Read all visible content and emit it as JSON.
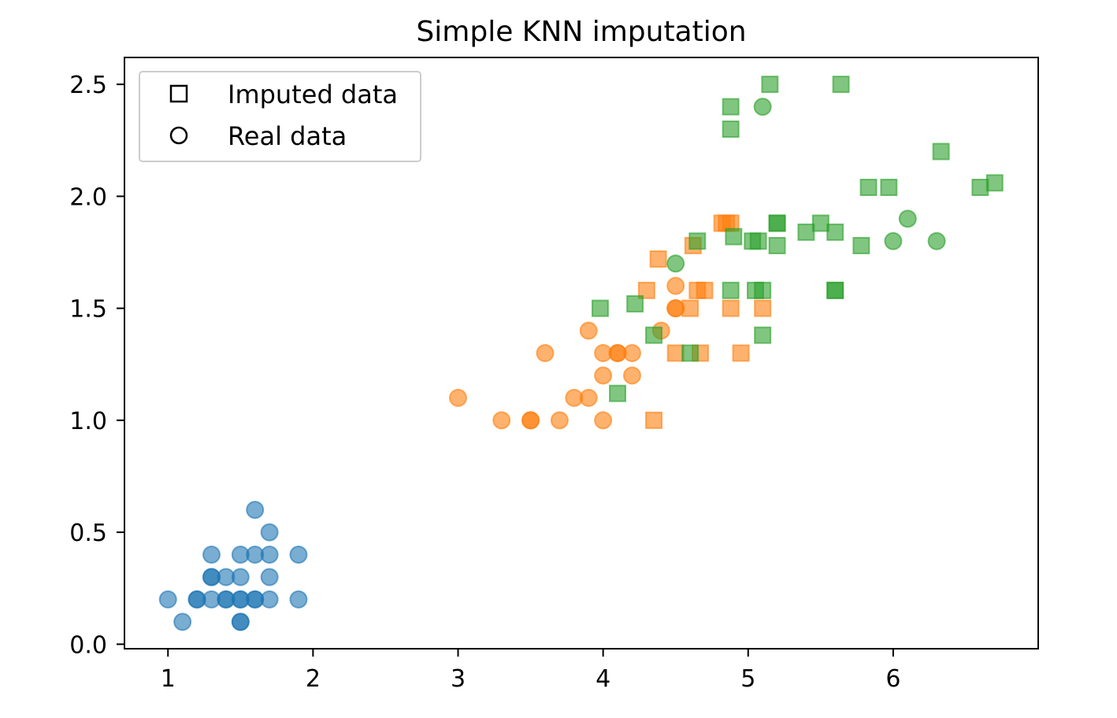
{
  "chart_data": {
    "type": "scatter",
    "title": "Simple KNN imputation",
    "xlabel": "",
    "ylabel": "",
    "xlim": [
      0.7,
      7.0
    ],
    "ylim": [
      -0.02,
      2.62
    ],
    "x_ticks": [
      "1",
      "2",
      "3",
      "4",
      "5",
      "6"
    ],
    "y_ticks": [
      "0.0",
      "0.5",
      "1.0",
      "1.5",
      "2.0",
      "2.5"
    ],
    "grid": false,
    "legend": {
      "placement": "top-left",
      "entries": [
        {
          "label": "Imputed data",
          "marker": "square"
        },
        {
          "label": "Real data",
          "marker": "circle"
        }
      ]
    },
    "series": [
      {
        "color": "#1f77b4",
        "marker": "circle",
        "points": [
          [
            1.0,
            0.2
          ],
          [
            1.1,
            0.1
          ],
          [
            1.2,
            0.2
          ],
          [
            1.2,
            0.2
          ],
          [
            1.3,
            0.2
          ],
          [
            1.3,
            0.3
          ],
          [
            1.3,
            0.3
          ],
          [
            1.3,
            0.4
          ],
          [
            1.4,
            0.2
          ],
          [
            1.4,
            0.2
          ],
          [
            1.4,
            0.3
          ],
          [
            1.5,
            0.1
          ],
          [
            1.5,
            0.1
          ],
          [
            1.5,
            0.2
          ],
          [
            1.5,
            0.2
          ],
          [
            1.5,
            0.3
          ],
          [
            1.5,
            0.4
          ],
          [
            1.6,
            0.2
          ],
          [
            1.6,
            0.2
          ],
          [
            1.6,
            0.4
          ],
          [
            1.6,
            0.6
          ],
          [
            1.7,
            0.2
          ],
          [
            1.7,
            0.3
          ],
          [
            1.7,
            0.4
          ],
          [
            1.7,
            0.5
          ],
          [
            1.9,
            0.2
          ],
          [
            1.9,
            0.4
          ]
        ]
      },
      {
        "color": "#ff7f0e",
        "marker": "circle",
        "points": [
          [
            3.0,
            1.1
          ],
          [
            3.3,
            1.0
          ],
          [
            3.5,
            1.0
          ],
          [
            3.5,
            1.0
          ],
          [
            3.6,
            1.3
          ],
          [
            3.7,
            1.0
          ],
          [
            3.8,
            1.1
          ],
          [
            3.9,
            1.1
          ],
          [
            3.9,
            1.4
          ],
          [
            4.0,
            1.0
          ],
          [
            4.0,
            1.2
          ],
          [
            4.0,
            1.3
          ],
          [
            4.1,
            1.3
          ],
          [
            4.1,
            1.3
          ],
          [
            4.2,
            1.2
          ],
          [
            4.2,
            1.3
          ],
          [
            4.4,
            1.4
          ],
          [
            4.5,
            1.5
          ],
          [
            4.5,
            1.5
          ],
          [
            4.5,
            1.6
          ]
        ]
      },
      {
        "color": "#ff7f0e",
        "marker": "square",
        "points": [
          [
            4.35,
            1.0
          ],
          [
            4.3,
            1.58
          ],
          [
            4.38,
            1.72
          ],
          [
            4.5,
            1.3
          ],
          [
            4.6,
            1.5
          ],
          [
            4.62,
            1.78
          ],
          [
            4.65,
            1.58
          ],
          [
            4.67,
            1.3
          ],
          [
            4.7,
            1.58
          ],
          [
            4.82,
            1.88
          ],
          [
            4.85,
            1.88
          ],
          [
            4.88,
            1.5
          ],
          [
            4.88,
            1.88
          ],
          [
            4.95,
            1.3
          ],
          [
            5.1,
            1.5
          ]
        ]
      },
      {
        "color": "#2ca02c",
        "marker": "circle",
        "points": [
          [
            4.5,
            1.7
          ],
          [
            5.1,
            2.4
          ],
          [
            6.0,
            1.8
          ],
          [
            6.1,
            1.9
          ],
          [
            6.3,
            1.8
          ]
        ]
      },
      {
        "color": "#2ca02c",
        "marker": "square",
        "points": [
          [
            3.98,
            1.5
          ],
          [
            4.1,
            1.12
          ],
          [
            4.22,
            1.52
          ],
          [
            4.35,
            1.38
          ],
          [
            4.6,
            1.3
          ],
          [
            4.65,
            1.8
          ],
          [
            4.88,
            1.58
          ],
          [
            4.9,
            1.82
          ],
          [
            4.88,
            2.3
          ],
          [
            4.88,
            2.4
          ],
          [
            5.03,
            1.8
          ],
          [
            5.05,
            1.58
          ],
          [
            5.07,
            1.8
          ],
          [
            5.1,
            1.58
          ],
          [
            5.1,
            1.38
          ],
          [
            5.15,
            2.5
          ],
          [
            5.2,
            1.88
          ],
          [
            5.2,
            1.88
          ],
          [
            5.2,
            1.78
          ],
          [
            5.4,
            1.84
          ],
          [
            5.5,
            1.88
          ],
          [
            5.6,
            1.84
          ],
          [
            5.6,
            1.58
          ],
          [
            5.6,
            1.58
          ],
          [
            5.64,
            2.5
          ],
          [
            5.78,
            1.78
          ],
          [
            5.83,
            2.04
          ],
          [
            5.97,
            2.04
          ],
          [
            6.33,
            2.2
          ],
          [
            6.6,
            2.04
          ],
          [
            6.7,
            2.06
          ]
        ]
      }
    ]
  }
}
